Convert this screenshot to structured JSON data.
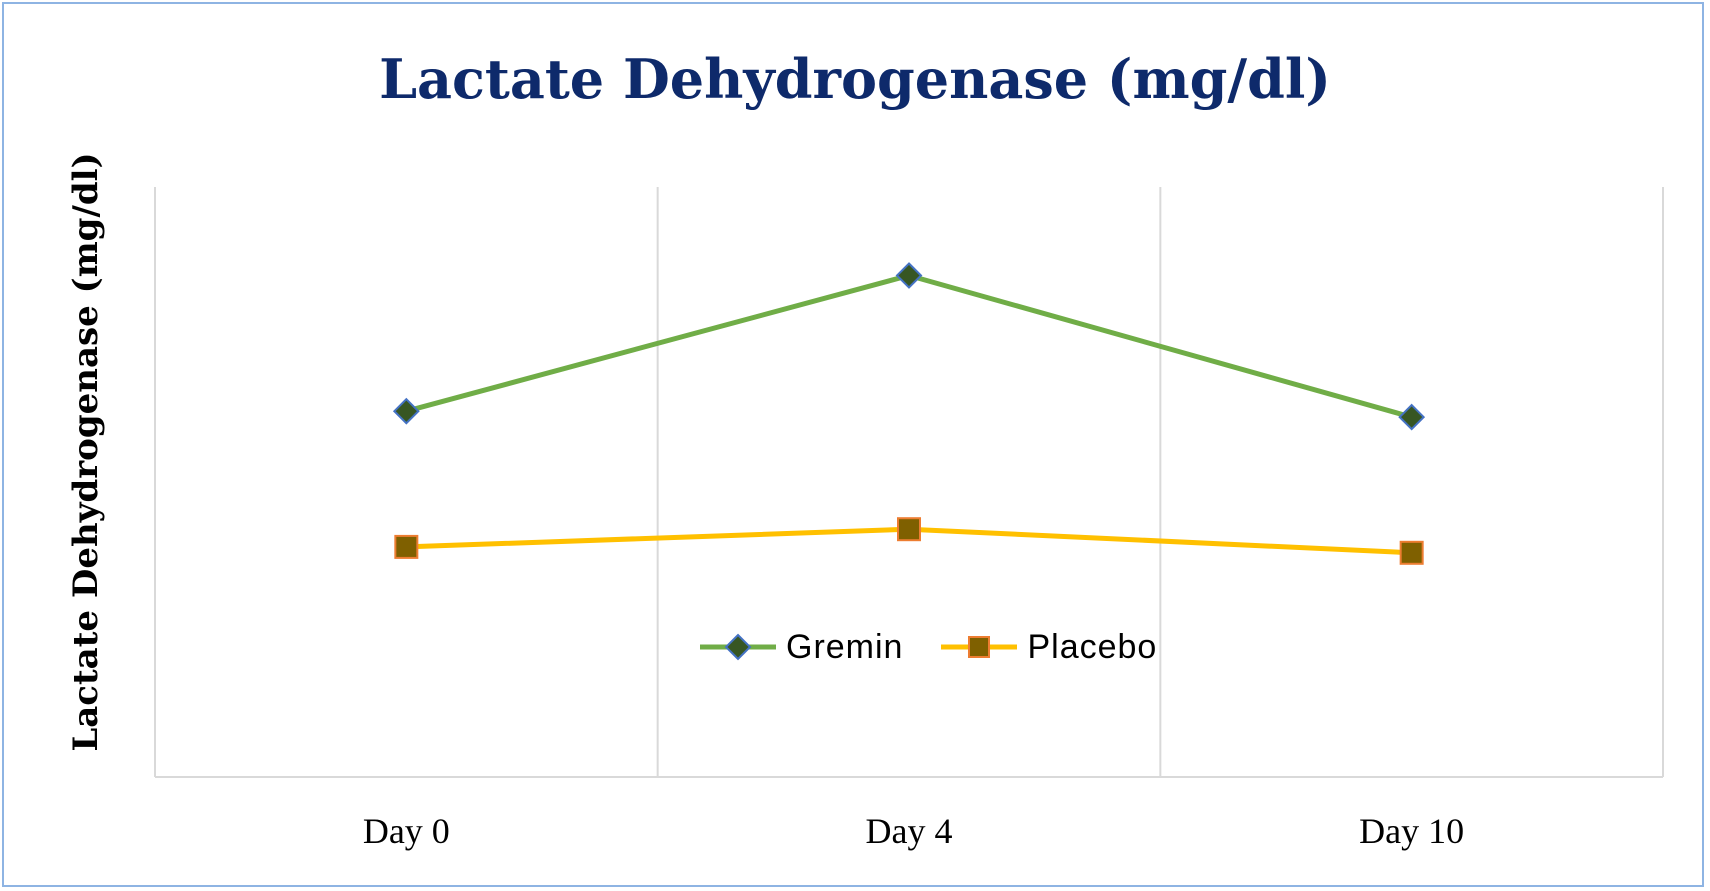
{
  "chart_data": {
    "type": "line",
    "title": "Lactate Dehydrogenase (mg/dl)",
    "xlabel": "",
    "ylabel": "Lactate Dehydrogenase (mg/dl)",
    "categories": [
      "Day 0",
      "Day 4",
      "Day 10"
    ],
    "ylim": [
      0,
      1
    ],
    "grid": "vertical",
    "legend": "inside-bottom-center",
    "series": [
      {
        "name": "Gremin",
        "values": [
          0.62,
          0.85,
          0.61
        ],
        "line_color": "#70ad47",
        "marker": "diamond",
        "marker_fill": "#375623",
        "marker_edge": "#4472c4"
      },
      {
        "name": "Placebo",
        "values": [
          0.39,
          0.42,
          0.38
        ],
        "line_color": "#ffc000",
        "marker": "square",
        "marker_fill": "#7f6000",
        "marker_edge": "#ed7d31"
      }
    ]
  },
  "colors": {
    "frame_border": "#8eb4e3",
    "title": "#0e2a6b",
    "gridline": "#d9d9d9",
    "axis": "#d9d9d9"
  }
}
